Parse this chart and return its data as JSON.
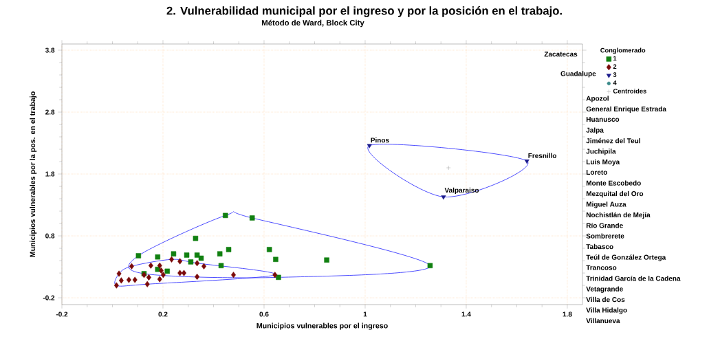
{
  "chart_data": {
    "type": "scatter",
    "title": "2. Vulnerabilidad municipal por el ingreso y por la posición en el trabajo.",
    "subtitle": "Método de Ward, Block City",
    "xlabel": "Municipios vulnerables por el ingreso",
    "ylabel": "Municipios vulnerables por la pos. en el trabajo",
    "legend_title": "Conglomerado",
    "xlim": [
      -0.2,
      1.86
    ],
    "ylim": [
      -0.31,
      3.9
    ],
    "xticks": [
      -0.2,
      0.2,
      0.6,
      1,
      1.4,
      1.8
    ],
    "yticks": [
      -0.2,
      0.8,
      1.8,
      2.8,
      3.8
    ],
    "grid": true,
    "legend": "top right",
    "series": [
      {
        "name": "1",
        "color": "#118011",
        "marker": "square",
        "x": [
          0.103,
          0.179,
          0.242,
          0.294,
          0.335,
          0.351,
          0.31,
          0.329,
          0.425,
          0.46,
          0.43,
          0.447,
          0.553,
          0.621,
          0.646,
          0.657,
          0.848,
          0.179,
          0.217,
          0.125,
          1.257
        ],
        "values": [
          0.48,
          0.46,
          0.51,
          0.49,
          0.49,
          0.44,
          0.38,
          0.76,
          0.51,
          0.58,
          0.32,
          1.13,
          1.09,
          0.58,
          0.42,
          0.13,
          0.41,
          0.26,
          0.23,
          0.19,
          0.32
        ]
      },
      {
        "name": "2",
        "color": "#7a0a0a",
        "marker": "diamond",
        "x": [
          0.076,
          0.026,
          0.016,
          0.035,
          0.065,
          0.089,
          0.125,
          0.144,
          0.138,
          0.152,
          0.187,
          0.193,
          0.201,
          0.187,
          0.234,
          0.267,
          0.267,
          0.283,
          0.335,
          0.362,
          0.335,
          0.479,
          0.643
        ],
        "values": [
          0.31,
          0.19,
          0.0,
          0.08,
          0.09,
          0.09,
          0.17,
          0.13,
          0.02,
          0.32,
          0.32,
          0.24,
          0.17,
          0.1,
          0.42,
          0.39,
          0.2,
          0.2,
          0.36,
          0.31,
          0.14,
          0.17,
          0.17
        ]
      },
      {
        "name": "3",
        "color": "#1c1c8c",
        "marker": "triangle",
        "x": [
          1.017,
          1.64,
          1.31
        ],
        "values": [
          2.26,
          2.01,
          1.43
        ]
      },
      {
        "name": "4",
        "color": "#3a8a8a",
        "marker": "circle"
      },
      {
        "name": "Centroides",
        "color": "#a0a0a0",
        "marker": "cross",
        "x": [
          1.33
        ],
        "values": [
          1.9
        ]
      }
    ],
    "annotations": [
      {
        "text": "Pinos",
        "x": 1.017,
        "y": 2.26
      },
      {
        "text": "Fresnillo",
        "x": 1.64,
        "y": 2.01
      },
      {
        "text": "Valparaiso",
        "x": 1.31,
        "y": 1.43
      },
      "Zacatecas",
      "Guadalupe",
      "Apozol",
      "General Enrique Estrada",
      "Huanusco",
      "Jalpa",
      "Jiménez del Teul",
      "Juchipila",
      "Luis Moya",
      "Loreto",
      "Monte Escobedo",
      "Mezquital del Oro",
      "Miguel Auza",
      "Nochistlán de Mejía",
      "Río Grande",
      "Sombrerete",
      "Tabasco",
      "Teúl de González Ortega",
      "Trancoso",
      "Trinidad García de la Cadena",
      "Vetagrande",
      "Villa de Cos",
      "Villa Hidalgo",
      "Villanueva"
    ]
  }
}
